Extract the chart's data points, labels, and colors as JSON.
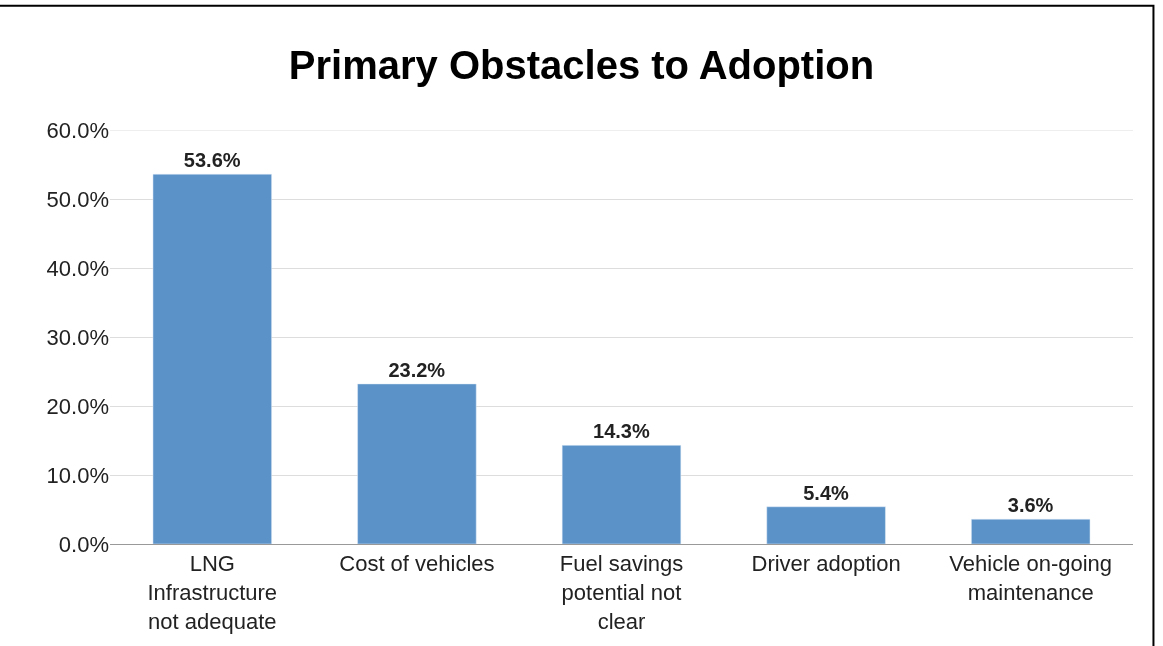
{
  "chart_data": {
    "type": "bar",
    "title": "Primary Obstacles to Adoption",
    "categories": [
      "LNG Infrastructure not adequate",
      "Cost of vehicles",
      "Fuel savings potential not clear",
      "Driver adoption",
      "Vehicle on-going maintenance"
    ],
    "values": [
      53.6,
      23.2,
      14.3,
      5.4,
      3.6
    ],
    "value_labels": [
      "53.6%",
      "23.2%",
      "14.3%",
      "5.4%",
      "3.6%"
    ],
    "color": "#5b93c9",
    "ylim": [
      0,
      60
    ],
    "yticks": [
      {
        "value": 0,
        "label": "0.0%"
      },
      {
        "value": 10,
        "label": "10.0%"
      },
      {
        "value": 20,
        "label": "20.0%"
      },
      {
        "value": 30,
        "label": "30.0%"
      },
      {
        "value": 40,
        "label": "40.0%"
      },
      {
        "value": 50,
        "label": "50.0%"
      },
      {
        "value": 60,
        "label": "60.0%"
      }
    ],
    "grid": "y"
  }
}
